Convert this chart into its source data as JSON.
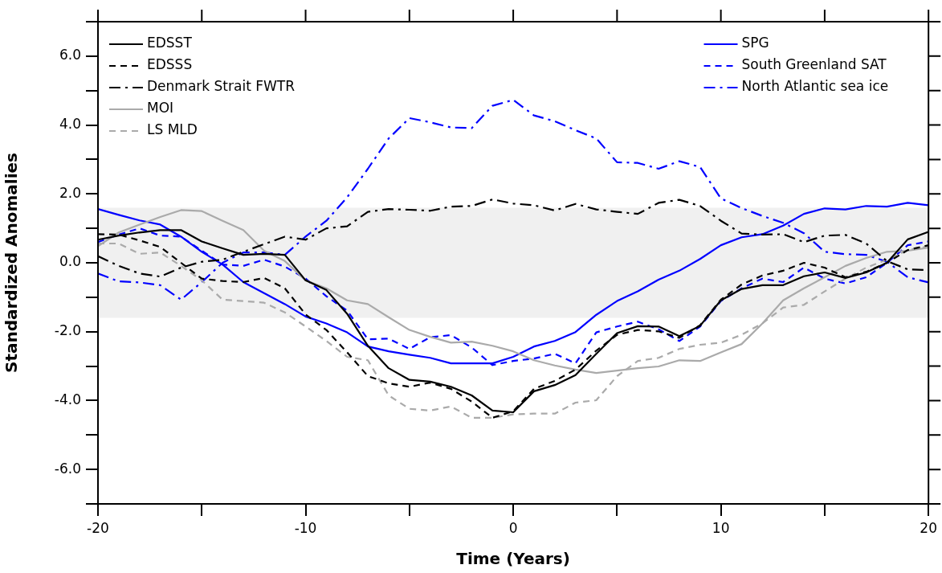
{
  "chart_data": {
    "type": "line",
    "xlabel": "Time (Years)",
    "ylabel": "Standardized Anomalies",
    "x": [
      -20,
      -19,
      -18,
      -17,
      -16,
      -15,
      -14,
      -13,
      -12,
      -11,
      -10,
      -9,
      -8,
      -7,
      -6,
      -5,
      -4,
      -3,
      -2,
      -1,
      0,
      1,
      2,
      3,
      4,
      5,
      6,
      7,
      8,
      9,
      10,
      11,
      12,
      13,
      14,
      15,
      16,
      17,
      18,
      19,
      20
    ],
    "xlim": [
      -20,
      20
    ],
    "xticks": [
      -20,
      {
        "value": -15,
        "label": null
      },
      -10,
      {
        "value": -5,
        "label": null
      },
      0,
      {
        "value": 5,
        "label": null
      },
      10,
      {
        "value": 15,
        "label": null
      },
      20
    ],
    "ylim": [
      -7,
      7
    ],
    "yticks": [
      {
        "value": -7,
        "label": null
      },
      {
        "value": -6,
        "label": "-6.0"
      },
      {
        "value": -5,
        "label": null
      },
      {
        "value": -4,
        "label": "-4.0"
      },
      {
        "value": -3,
        "label": null
      },
      {
        "value": -2,
        "label": "-2.0"
      },
      {
        "value": -1,
        "label": null
      },
      {
        "value": 0,
        "label": "0.0"
      },
      {
        "value": 1,
        "label": null
      },
      {
        "value": 2,
        "label": "2.0"
      },
      {
        "value": 3,
        "label": null
      },
      {
        "value": 4,
        "label": "4.0"
      },
      {
        "value": 5,
        "label": null
      },
      {
        "value": 6,
        "label": "6.0"
      },
      {
        "value": 7,
        "label": null
      }
    ],
    "grid": false,
    "legend": "top",
    "marker": "none",
    "bands": [
      {
        "axis": "y",
        "from": -1.6,
        "to": 1.6,
        "color": "#f0f0f0"
      }
    ],
    "series": [
      {
        "name": "EDSST",
        "color": "#000000",
        "line_style": "solid",
        "values": [
          0.67,
          0.79,
          0.88,
          0.95,
          0.95,
          0.62,
          0.42,
          0.23,
          0.26,
          0.23,
          -0.51,
          -0.79,
          -1.48,
          -2.41,
          -3.06,
          -3.4,
          -3.45,
          -3.6,
          -3.85,
          -4.29,
          -4.34,
          -3.73,
          -3.55,
          -3.26,
          -2.64,
          -2.04,
          -1.84,
          -1.85,
          -2.13,
          -1.83,
          -1.09,
          -0.76,
          -0.65,
          -0.65,
          -0.39,
          -0.28,
          -0.44,
          -0.28,
          0.0,
          0.68,
          0.9
        ]
      },
      {
        "name": "EDSSS",
        "color": "#000000",
        "line_style": "dashed",
        "values": [
          0.83,
          0.82,
          0.65,
          0.46,
          0.0,
          -0.46,
          -0.53,
          -0.56,
          -0.44,
          -0.74,
          -1.5,
          -1.95,
          -2.6,
          -3.29,
          -3.5,
          -3.6,
          -3.48,
          -3.66,
          -4.03,
          -4.5,
          -4.31,
          -3.66,
          -3.43,
          -3.1,
          -2.55,
          -2.09,
          -1.95,
          -1.99,
          -2.18,
          -1.81,
          -1.07,
          -0.63,
          -0.37,
          -0.23,
          0.0,
          -0.14,
          -0.42,
          -0.26,
          0.0,
          0.37,
          0.51
        ]
      },
      {
        "name": "Denmark Strait FWTR",
        "color": "#000000",
        "line_style": "dashdot",
        "values": [
          0.19,
          -0.09,
          -0.31,
          -0.4,
          -0.14,
          0.03,
          0.09,
          0.32,
          0.54,
          0.76,
          0.67,
          1.0,
          1.06,
          1.48,
          1.56,
          1.54,
          1.51,
          1.63,
          1.65,
          1.84,
          1.72,
          1.67,
          1.52,
          1.71,
          1.55,
          1.48,
          1.42,
          1.74,
          1.83,
          1.65,
          1.22,
          0.85,
          0.82,
          0.83,
          0.6,
          0.79,
          0.81,
          0.56,
          0.05,
          -0.19,
          -0.21
        ]
      },
      {
        "name": "MOI",
        "color": "#aaaaaa",
        "line_style": "solid",
        "values": [
          0.48,
          0.88,
          1.11,
          1.33,
          1.53,
          1.5,
          1.22,
          0.95,
          0.35,
          0.05,
          -0.51,
          -0.74,
          -1.09,
          -1.2,
          -1.58,
          -1.95,
          -2.15,
          -2.32,
          -2.29,
          -2.41,
          -2.57,
          -2.83,
          -2.98,
          -3.1,
          -3.2,
          -3.13,
          -3.06,
          -3.01,
          -2.83,
          -2.85,
          -2.6,
          -2.36,
          -1.76,
          -1.09,
          -0.74,
          -0.42,
          -0.09,
          0.14,
          0.32,
          0.35,
          0.44
        ]
      },
      {
        "name": "LS MLD",
        "color": "#aaaaaa",
        "line_style": "dashed",
        "values": [
          0.56,
          0.56,
          0.26,
          0.3,
          -0.09,
          -0.51,
          -1.07,
          -1.11,
          -1.16,
          -1.44,
          -1.85,
          -2.27,
          -2.73,
          -2.83,
          -3.85,
          -4.24,
          -4.29,
          -4.17,
          -4.5,
          -4.5,
          -4.4,
          -4.38,
          -4.38,
          -4.06,
          -3.99,
          -3.29,
          -2.85,
          -2.76,
          -2.5,
          -2.38,
          -2.32,
          -2.09,
          -1.76,
          -1.3,
          -1.22,
          -0.83,
          -0.46,
          -0.14,
          0.09,
          0.37,
          0.48
        ]
      },
      {
        "name": "SPG",
        "color": "#0000ff",
        "line_style": "solid",
        "values": [
          1.56,
          1.39,
          1.23,
          1.11,
          0.76,
          0.32,
          -0.05,
          -0.56,
          -0.88,
          -1.2,
          -1.56,
          -1.76,
          -2.02,
          -2.43,
          -2.57,
          -2.67,
          -2.76,
          -2.92,
          -2.92,
          -2.92,
          -2.73,
          -2.43,
          -2.27,
          -2.01,
          -1.51,
          -1.11,
          -0.83,
          -0.49,
          -0.23,
          0.11,
          0.51,
          0.74,
          0.83,
          1.08,
          1.42,
          1.58,
          1.55,
          1.65,
          1.63,
          1.74,
          1.67
        ]
      },
      {
        "name": "South Greenland SAT",
        "color": "#0000ff",
        "line_style": "dashed",
        "values": [
          0.6,
          0.82,
          1.0,
          0.79,
          0.76,
          0.35,
          -0.05,
          -0.09,
          0.09,
          -0.11,
          -0.46,
          -0.97,
          -1.39,
          -2.22,
          -2.2,
          -2.5,
          -2.16,
          -2.1,
          -2.46,
          -2.97,
          -2.85,
          -2.78,
          -2.64,
          -2.92,
          -2.02,
          -1.85,
          -1.71,
          -1.93,
          -2.27,
          -1.85,
          -1.11,
          -0.74,
          -0.46,
          -0.56,
          -0.14,
          -0.46,
          -0.6,
          -0.42,
          0.0,
          0.51,
          0.62
        ]
      },
      {
        "name": "North Atlantic sea ice",
        "color": "#0000ff",
        "line_style": "dashdot",
        "values": [
          -0.31,
          -0.54,
          -0.57,
          -0.65,
          -1.07,
          -0.56,
          0.0,
          0.3,
          0.3,
          0.23,
          0.76,
          1.22,
          1.9,
          2.73,
          3.61,
          4.2,
          4.08,
          3.93,
          3.91,
          4.56,
          4.73,
          4.28,
          4.11,
          3.85,
          3.61,
          2.92,
          2.9,
          2.73,
          2.95,
          2.78,
          1.87,
          1.59,
          1.36,
          1.16,
          0.86,
          0.32,
          0.25,
          0.23,
          0.03,
          -0.42,
          -0.57
        ]
      }
    ]
  }
}
